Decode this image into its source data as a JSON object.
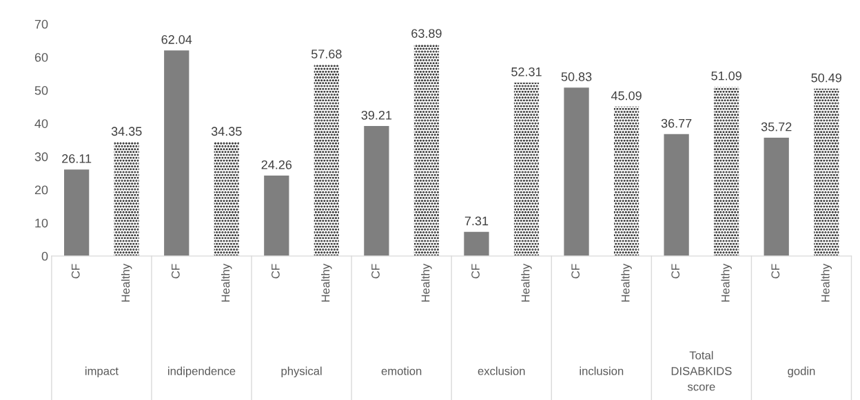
{
  "chart_data": {
    "type": "bar",
    "categories": [
      "CF",
      "Healthy",
      "CF",
      "Healthy",
      "CF",
      "Healthy",
      "CF",
      "Healthy",
      "CF",
      "Healthy",
      "CF",
      "Healthy",
      "CF",
      "Healthy",
      "CF",
      "Healthy"
    ],
    "values": [
      26.11,
      34.35,
      62.04,
      34.35,
      24.26,
      57.68,
      39.21,
      63.89,
      7.31,
      52.31,
      50.83,
      45.09,
      36.77,
      51.09,
      35.72,
      50.49
    ],
    "colors": [
      "#7f7f7f",
      "#ffffff",
      "#7f7f7f",
      "#ffffff",
      "#7f7f7f",
      "#ffffff",
      "#7f7f7f",
      "#ffffff",
      "#7f7f7f",
      "#ffffff",
      "#7f7f7f",
      "#ffffff",
      "#7f7f7f",
      "#ffffff",
      "#7f7f7f",
      "#ffffff"
    ],
    "annotations": [
      "impact",
      "indipendence",
      "physical",
      "emotion",
      "exclusion",
      "inclusion",
      "Total DISABKIDS score",
      "godin"
    ],
    "ylim": [
      0,
      70
    ],
    "yticks": [
      0,
      10,
      20,
      30,
      40,
      50,
      60,
      70
    ],
    "data_labels": true,
    "grid": false
  }
}
